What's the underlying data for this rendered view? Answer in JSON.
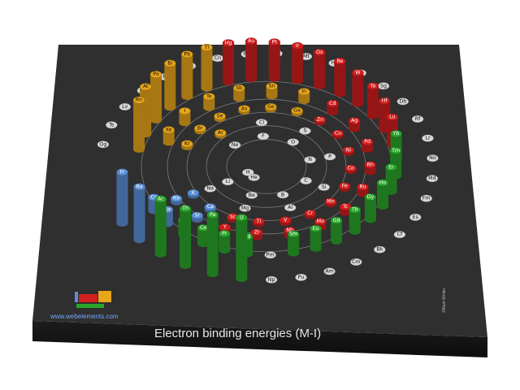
{
  "chart_data": {
    "type": "radial-bar-3d",
    "title": "Electron binding energies (M-I)",
    "website": "www.webelements.com",
    "copyright": "©Mark Winter",
    "colors": {
      "s": "#5b8fd6",
      "p": "#e6a51a",
      "d": "#d11e1e",
      "f": "#2aa52a",
      "none": "#d8d8d8",
      "board": "#2e2e2e"
    },
    "elements": [
      {
        "symbol": "H",
        "ring": 0,
        "block": "none",
        "value": 0
      },
      {
        "symbol": "He",
        "ring": 0,
        "block": "none",
        "value": 0
      },
      {
        "symbol": "Li",
        "ring": 1,
        "block": "none",
        "value": 0
      },
      {
        "symbol": "Be",
        "ring": 1,
        "block": "none",
        "value": 0
      },
      {
        "symbol": "B",
        "ring": 1,
        "block": "none",
        "value": 0
      },
      {
        "symbol": "C",
        "ring": 1,
        "block": "none",
        "value": 0
      },
      {
        "symbol": "N",
        "ring": 1,
        "block": "none",
        "value": 0
      },
      {
        "symbol": "O",
        "ring": 1,
        "block": "none",
        "value": 0
      },
      {
        "symbol": "F",
        "ring": 1,
        "block": "none",
        "value": 0
      },
      {
        "symbol": "Ne",
        "ring": 1,
        "block": "none",
        "value": 0
      },
      {
        "symbol": "Na",
        "ring": 2,
        "block": "none",
        "value": 0
      },
      {
        "symbol": "Mg",
        "ring": 2,
        "block": "none",
        "value": 0
      },
      {
        "symbol": "Al",
        "ring": 2,
        "block": "none",
        "value": 0
      },
      {
        "symbol": "Si",
        "ring": 2,
        "block": "none",
        "value": 0
      },
      {
        "symbol": "P",
        "ring": 2,
        "block": "none",
        "value": 0
      },
      {
        "symbol": "S",
        "ring": 2,
        "block": "none",
        "value": 0
      },
      {
        "symbol": "Cl",
        "ring": 2,
        "block": "none",
        "value": 0
      },
      {
        "symbol": "Ar",
        "ring": 2,
        "block": "p",
        "value": 29
      },
      {
        "symbol": "K",
        "ring": 3,
        "block": "s",
        "value": 34
      },
      {
        "symbol": "Ca",
        "ring": 3,
        "block": "s",
        "value": 44
      },
      {
        "symbol": "Sc",
        "ring": 3,
        "block": "d",
        "value": 54
      },
      {
        "symbol": "Ti",
        "ring": 3,
        "block": "d",
        "value": 59
      },
      {
        "symbol": "V",
        "ring": 3,
        "block": "d",
        "value": 66
      },
      {
        "symbol": "Cr",
        "ring": 3,
        "block": "d",
        "value": 74
      },
      {
        "symbol": "Mn",
        "ring": 3,
        "block": "d",
        "value": 84
      },
      {
        "symbol": "Fe",
        "ring": 3,
        "block": "d",
        "value": 95
      },
      {
        "symbol": "Co",
        "ring": 3,
        "block": "d",
        "value": 101
      },
      {
        "symbol": "Ni",
        "ring": 3,
        "block": "d",
        "value": 112
      },
      {
        "symbol": "Cu",
        "ring": 3,
        "block": "d",
        "value": 120
      },
      {
        "symbol": "Zn",
        "ring": 3,
        "block": "d",
        "value": 137
      },
      {
        "symbol": "Ga",
        "ring": 3,
        "block": "p",
        "value": 158
      },
      {
        "symbol": "Ge",
        "ring": 3,
        "block": "p",
        "value": 181
      },
      {
        "symbol": "As",
        "ring": 3,
        "block": "p",
        "value": 204
      },
      {
        "symbol": "Se",
        "ring": 3,
        "block": "p",
        "value": 232
      },
      {
        "symbol": "Br",
        "ring": 3,
        "block": "p",
        "value": 257
      },
      {
        "symbol": "Kr",
        "ring": 3,
        "block": "p",
        "value": 289
      },
      {
        "symbol": "Rb",
        "ring": 4,
        "block": "s",
        "value": 322
      },
      {
        "symbol": "Sr",
        "ring": 4,
        "block": "s",
        "value": 358
      },
      {
        "symbol": "Y",
        "ring": 4,
        "block": "d",
        "value": 395
      },
      {
        "symbol": "Zr",
        "ring": 4,
        "block": "d",
        "value": 431
      },
      {
        "symbol": "Nb",
        "ring": 4,
        "block": "d",
        "value": 469
      },
      {
        "symbol": "Mo",
        "ring": 4,
        "block": "d",
        "value": 505
      },
      {
        "symbol": "Tc",
        "ring": 4,
        "block": "d",
        "value": 544
      },
      {
        "symbol": "Ru",
        "ring": 4,
        "block": "d",
        "value": 585
      },
      {
        "symbol": "Rh",
        "ring": 4,
        "block": "d",
        "value": 627
      },
      {
        "symbol": "Pd",
        "ring": 4,
        "block": "d",
        "value": 670
      },
      {
        "symbol": "Ag",
        "ring": 4,
        "block": "d",
        "value": 717
      },
      {
        "symbol": "Cd",
        "ring": 4,
        "block": "d",
        "value": 770
      },
      {
        "symbol": "In",
        "ring": 4,
        "block": "p",
        "value": 826
      },
      {
        "symbol": "Sn",
        "ring": 4,
        "block": "p",
        "value": 884
      },
      {
        "symbol": "Sb",
        "ring": 4,
        "block": "p",
        "value": 944
      },
      {
        "symbol": "Te",
        "ring": 4,
        "block": "p",
        "value": 1006
      },
      {
        "symbol": "I",
        "ring": 4,
        "block": "p",
        "value": 1072
      },
      {
        "symbol": "Xe",
        "ring": 4,
        "block": "p",
        "value": 1145
      },
      {
        "symbol": "Cs",
        "ring": 5,
        "block": "s",
        "value": 1217
      },
      {
        "symbol": "Ba",
        "ring": 5,
        "block": "s",
        "value": 1293
      },
      {
        "symbol": "La",
        "ring": 5,
        "block": "f",
        "value": 1362
      },
      {
        "symbol": "Ce",
        "ring": 5,
        "block": "f",
        "value": 1435
      },
      {
        "symbol": "Pr",
        "ring": 5,
        "block": "f",
        "value": 1511
      },
      {
        "symbol": "Nd",
        "ring": 5,
        "block": "f",
        "value": 1575
      },
      {
        "symbol": "Pm",
        "ring": 5,
        "block": "none",
        "value": 0
      },
      {
        "symbol": "Sm",
        "ring": 5,
        "block": "f",
        "value": 1723
      },
      {
        "symbol": "Eu",
        "ring": 5,
        "block": "f",
        "value": 1800
      },
      {
        "symbol": "Gd",
        "ring": 5,
        "block": "f",
        "value": 1881
      },
      {
        "symbol": "Tb",
        "ring": 5,
        "block": "f",
        "value": 1968
      },
      {
        "symbol": "Dy",
        "ring": 5,
        "block": "f",
        "value": 2047
      },
      {
        "symbol": "Ho",
        "ring": 5,
        "block": "f",
        "value": 2128
      },
      {
        "symbol": "Er",
        "ring": 5,
        "block": "f",
        "value": 2207
      },
      {
        "symbol": "Tm",
        "ring": 5,
        "block": "f",
        "value": 2307
      },
      {
        "symbol": "Yb",
        "ring": 5,
        "block": "f",
        "value": 2398
      },
      {
        "symbol": "Lu",
        "ring": 5,
        "block": "d",
        "value": 2491
      },
      {
        "symbol": "Hf",
        "ring": 5,
        "block": "d",
        "value": 2601
      },
      {
        "symbol": "Ta",
        "ring": 5,
        "block": "d",
        "value": 2708
      },
      {
        "symbol": "W",
        "ring": 5,
        "block": "d",
        "value": 2820
      },
      {
        "symbol": "Re",
        "ring": 5,
        "block": "d",
        "value": 2932
      },
      {
        "symbol": "Os",
        "ring": 5,
        "block": "d",
        "value": 3049
      },
      {
        "symbol": "Ir",
        "ring": 5,
        "block": "d",
        "value": 3174
      },
      {
        "symbol": "Pt",
        "ring": 5,
        "block": "d",
        "value": 3296
      },
      {
        "symbol": "Au",
        "ring": 5,
        "block": "d",
        "value": 3425
      },
      {
        "symbol": "Hg",
        "ring": 5,
        "block": "d",
        "value": 3562
      },
      {
        "symbol": "Tl",
        "ring": 5,
        "block": "p",
        "value": 3704
      },
      {
        "symbol": "Pb",
        "ring": 5,
        "block": "p",
        "value": 3851
      },
      {
        "symbol": "Bi",
        "ring": 5,
        "block": "p",
        "value": 3999
      },
      {
        "symbol": "Po",
        "ring": 5,
        "block": "p",
        "value": 4149
      },
      {
        "symbol": "At",
        "ring": 5,
        "block": "p",
        "value": 4317
      },
      {
        "symbol": "Rn",
        "ring": 5,
        "block": "p",
        "value": 4482
      },
      {
        "symbol": "Fr",
        "ring": 6,
        "block": "s",
        "value": 4652
      },
      {
        "symbol": "Ra",
        "ring": 6,
        "block": "s",
        "value": 4822
      },
      {
        "symbol": "Ac",
        "ring": 6,
        "block": "f",
        "value": 5002
      },
      {
        "symbol": "Th",
        "ring": 6,
        "block": "f",
        "value": 5182
      },
      {
        "symbol": "Pa",
        "ring": 6,
        "block": "f",
        "value": 5367
      },
      {
        "symbol": "U",
        "ring": 6,
        "block": "f",
        "value": 5548
      },
      {
        "symbol": "Np",
        "ring": 6,
        "block": "none",
        "value": 0
      },
      {
        "symbol": "Pu",
        "ring": 6,
        "block": "none",
        "value": 0
      },
      {
        "symbol": "Am",
        "ring": 6,
        "block": "none",
        "value": 0
      },
      {
        "symbol": "Cm",
        "ring": 6,
        "block": "none",
        "value": 0
      },
      {
        "symbol": "Bk",
        "ring": 6,
        "block": "none",
        "value": 0
      },
      {
        "symbol": "Cf",
        "ring": 6,
        "block": "none",
        "value": 0
      },
      {
        "symbol": "Es",
        "ring": 6,
        "block": "none",
        "value": 0
      },
      {
        "symbol": "Fm",
        "ring": 6,
        "block": "none",
        "value": 0
      },
      {
        "symbol": "Md",
        "ring": 6,
        "block": "none",
        "value": 0
      },
      {
        "symbol": "No",
        "ring": 6,
        "block": "none",
        "value": 0
      },
      {
        "symbol": "Lr",
        "ring": 6,
        "block": "none",
        "value": 0
      },
      {
        "symbol": "Rf",
        "ring": 6,
        "block": "none",
        "value": 0
      },
      {
        "symbol": "Db",
        "ring": 6,
        "block": "none",
        "value": 0
      },
      {
        "symbol": "Sg",
        "ring": 6,
        "block": "none",
        "value": 0
      },
      {
        "symbol": "Bh",
        "ring": 6,
        "block": "none",
        "value": 0
      },
      {
        "symbol": "Hs",
        "ring": 6,
        "block": "none",
        "value": 0
      },
      {
        "symbol": "Mt",
        "ring": 6,
        "block": "none",
        "value": 0
      },
      {
        "symbol": "Ds",
        "ring": 6,
        "block": "none",
        "value": 0
      },
      {
        "symbol": "Rg",
        "ring": 6,
        "block": "none",
        "value": 0
      },
      {
        "symbol": "Cn",
        "ring": 6,
        "block": "none",
        "value": 0
      },
      {
        "symbol": "Nh",
        "ring": 6,
        "block": "none",
        "value": 0
      },
      {
        "symbol": "Fl",
        "ring": 6,
        "block": "none",
        "value": 0
      },
      {
        "symbol": "Mc",
        "ring": 6,
        "block": "none",
        "value": 0
      },
      {
        "symbol": "Lv",
        "ring": 6,
        "block": "none",
        "value": 0
      },
      {
        "symbol": "Ts",
        "ring": 6,
        "block": "none",
        "value": 0
      },
      {
        "symbol": "Og",
        "ring": 6,
        "block": "none",
        "value": 0
      }
    ]
  }
}
